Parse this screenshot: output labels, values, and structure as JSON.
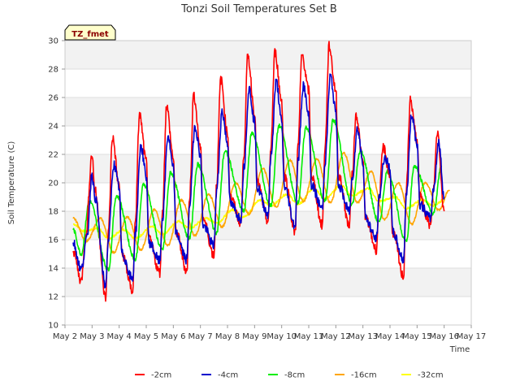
{
  "chart_data": {
    "type": "line",
    "title": "Tonzi Soil Temperatures Set B",
    "xlabel": "Time",
    "ylabel": "Soil Temperature (C)",
    "badge": "TZ_fmet",
    "ylim": [
      10,
      30
    ],
    "yticks": [
      10,
      12,
      14,
      16,
      18,
      20,
      22,
      24,
      26,
      28,
      30
    ],
    "xlim": [
      2,
      17
    ],
    "xticks": [
      {
        "day": 2,
        "label": "May 2"
      },
      {
        "day": 3,
        "label": "May 3"
      },
      {
        "day": 4,
        "label": "May 4"
      },
      {
        "day": 5,
        "label": "May 5"
      },
      {
        "day": 6,
        "label": "May 6"
      },
      {
        "day": 7,
        "label": "May 7"
      },
      {
        "day": 8,
        "label": "May 8"
      },
      {
        "day": 9,
        "label": "May 9"
      },
      {
        "day": 10,
        "label": "May 10"
      },
      {
        "day": 11,
        "label": "May 11"
      },
      {
        "day": 12,
        "label": "May 12"
      },
      {
        "day": 13,
        "label": "May 13"
      },
      {
        "day": 14,
        "label": "May 14"
      },
      {
        "day": 15,
        "label": "May 15"
      },
      {
        "day": 16,
        "label": "May 16"
      },
      {
        "day": 17,
        "label": "May 17"
      }
    ],
    "grid": true,
    "legend_position": "bottom",
    "series": [
      {
        "name": "-2cm",
        "color": "#ff0000",
        "x": [
          2.3,
          2.6,
          2.75,
          3.0,
          3.1,
          3.5,
          3.6,
          3.75,
          4.0,
          4.1,
          4.5,
          4.6,
          4.75,
          5.0,
          5.1,
          5.5,
          5.6,
          5.75,
          6.0,
          6.1,
          6.5,
          6.6,
          6.75,
          7.0,
          7.1,
          7.5,
          7.6,
          7.75,
          8.0,
          8.1,
          8.5,
          8.6,
          8.75,
          9.0,
          9.1,
          9.5,
          9.6,
          9.75,
          10.0,
          10.1,
          10.5,
          10.6,
          10.75,
          11.0,
          11.1,
          11.5,
          11.6,
          11.75,
          12.0,
          12.1,
          12.5,
          12.6,
          12.75,
          13.0,
          13.1,
          13.5,
          13.6,
          13.75,
          14.0,
          14.1,
          14.5,
          14.6,
          14.75,
          15.0,
          15.1,
          15.5,
          15.6,
          15.75,
          16.0
        ],
        "y": [
          15.2,
          13.1,
          16.0,
          22.0,
          19.5,
          11.9,
          16.5,
          23.2,
          19.8,
          15.0,
          12.4,
          17.5,
          24.8,
          21.5,
          16.0,
          13.7,
          18.0,
          25.4,
          21.8,
          16.5,
          13.8,
          19.0,
          26.2,
          22.5,
          17.5,
          14.9,
          20.0,
          27.3,
          23.5,
          19.0,
          17.2,
          22.0,
          28.9,
          25.0,
          20.0,
          17.3,
          22.5,
          29.2,
          25.8,
          20.5,
          16.5,
          22.5,
          29.0,
          26.5,
          20.5,
          17.0,
          22.5,
          29.6,
          26.5,
          20.5,
          17.0,
          20.5,
          24.8,
          21.5,
          17.5,
          15.3,
          19.0,
          22.5,
          20.5,
          16.5,
          13.4,
          19.5,
          25.8,
          23.0,
          19.0,
          17.0,
          19.5,
          23.6,
          18.0
        ]
      },
      {
        "name": "-4cm",
        "color": "#0000cc",
        "x": [
          2.3,
          2.6,
          2.8,
          3.0,
          3.1,
          3.5,
          3.6,
          3.8,
          4.0,
          4.1,
          4.5,
          4.6,
          4.8,
          5.0,
          5.1,
          5.5,
          5.6,
          5.8,
          6.0,
          6.1,
          6.5,
          6.6,
          6.8,
          7.0,
          7.1,
          7.5,
          7.6,
          7.8,
          8.0,
          8.1,
          8.5,
          8.6,
          8.8,
          9.0,
          9.1,
          9.5,
          9.6,
          9.8,
          10.0,
          10.1,
          10.5,
          10.6,
          10.8,
          11.0,
          11.1,
          11.5,
          11.6,
          11.8,
          12.0,
          12.1,
          12.5,
          12.6,
          12.8,
          13.0,
          13.1,
          13.5,
          13.6,
          13.8,
          14.0,
          14.1,
          14.5,
          14.6,
          14.8,
          15.0,
          15.1,
          15.5,
          15.6,
          15.8,
          16.0
        ],
        "y": [
          15.8,
          13.9,
          16.0,
          20.6,
          19.0,
          12.8,
          16.0,
          21.3,
          19.7,
          15.0,
          13.2,
          16.5,
          22.6,
          20.5,
          15.8,
          14.5,
          17.5,
          23.3,
          21.0,
          16.4,
          14.6,
          18.5,
          24.0,
          22.0,
          17.0,
          15.6,
          19.5,
          25.0,
          22.8,
          18.5,
          17.5,
          21.0,
          26.6,
          24.3,
          19.6,
          17.8,
          21.8,
          27.1,
          24.3,
          19.7,
          17.0,
          21.5,
          26.9,
          24.7,
          19.8,
          18.2,
          21.5,
          27.5,
          25.0,
          19.8,
          18.0,
          20.3,
          23.8,
          21.5,
          17.5,
          16.0,
          19.0,
          21.8,
          21.0,
          16.5,
          14.6,
          19.0,
          24.8,
          22.8,
          18.5,
          17.5,
          19.5,
          22.8,
          19.0
        ]
      },
      {
        "name": "-8cm",
        "color": "#00ee00",
        "x": [
          2.3,
          2.6,
          2.9,
          3.6,
          3.9,
          4.6,
          4.9,
          5.6,
          5.9,
          6.6,
          6.9,
          7.6,
          7.9,
          8.6,
          8.9,
          9.6,
          9.9,
          10.6,
          10.9,
          11.6,
          11.9,
          12.6,
          12.9,
          13.6,
          13.9,
          14.6,
          14.9,
          15.6,
          15.9
        ],
        "y": [
          16.7,
          15.0,
          18.7,
          13.9,
          19.1,
          14.6,
          19.9,
          15.3,
          20.7,
          16.1,
          21.3,
          16.5,
          22.2,
          18.0,
          23.5,
          18.4,
          24.0,
          18.6,
          23.9,
          18.7,
          24.4,
          18.5,
          22.2,
          17.2,
          20.8,
          15.9,
          21.2,
          17.8,
          21.2
        ]
      },
      {
        "name": "-16cm",
        "color": "#ffa500",
        "x": [
          2.3,
          2.8,
          3.3,
          3.8,
          4.3,
          4.8,
          5.3,
          5.8,
          6.3,
          6.8,
          7.3,
          7.8,
          8.3,
          8.8,
          9.3,
          9.8,
          10.3,
          10.8,
          11.3,
          11.8,
          12.3,
          12.8,
          13.3,
          13.8,
          14.3,
          14.8,
          15.3,
          15.8,
          16.2
        ],
        "y": [
          17.5,
          15.9,
          17.5,
          15.1,
          17.6,
          15.3,
          18.1,
          15.6,
          18.8,
          16.3,
          19.2,
          16.9,
          20.0,
          17.8,
          21.0,
          18.3,
          21.6,
          18.7,
          21.7,
          18.6,
          22.1,
          18.6,
          20.8,
          17.4,
          20.0,
          17.1,
          20.0,
          18.1,
          19.5
        ]
      },
      {
        "name": "-32cm",
        "color": "#ffff00",
        "x": [
          2.3,
          2.7,
          3.2,
          3.6,
          4.2,
          4.6,
          5.2,
          5.6,
          6.2,
          6.6,
          7.2,
          7.6,
          8.2,
          8.6,
          9.2,
          9.6,
          10.2,
          10.6,
          11.2,
          11.6,
          12.2,
          12.6,
          13.2,
          13.6,
          14.2,
          14.6,
          15.2,
          15.6,
          16.0
        ],
        "y": [
          17.1,
          16.6,
          16.8,
          16.1,
          16.7,
          16.1,
          16.9,
          16.4,
          17.3,
          16.8,
          17.5,
          17.2,
          18.1,
          17.6,
          18.8,
          18.4,
          19.2,
          18.5,
          19.6,
          18.9,
          19.8,
          19.1,
          19.6,
          18.7,
          19.0,
          18.2,
          18.8,
          18.4,
          18.8
        ]
      }
    ]
  }
}
